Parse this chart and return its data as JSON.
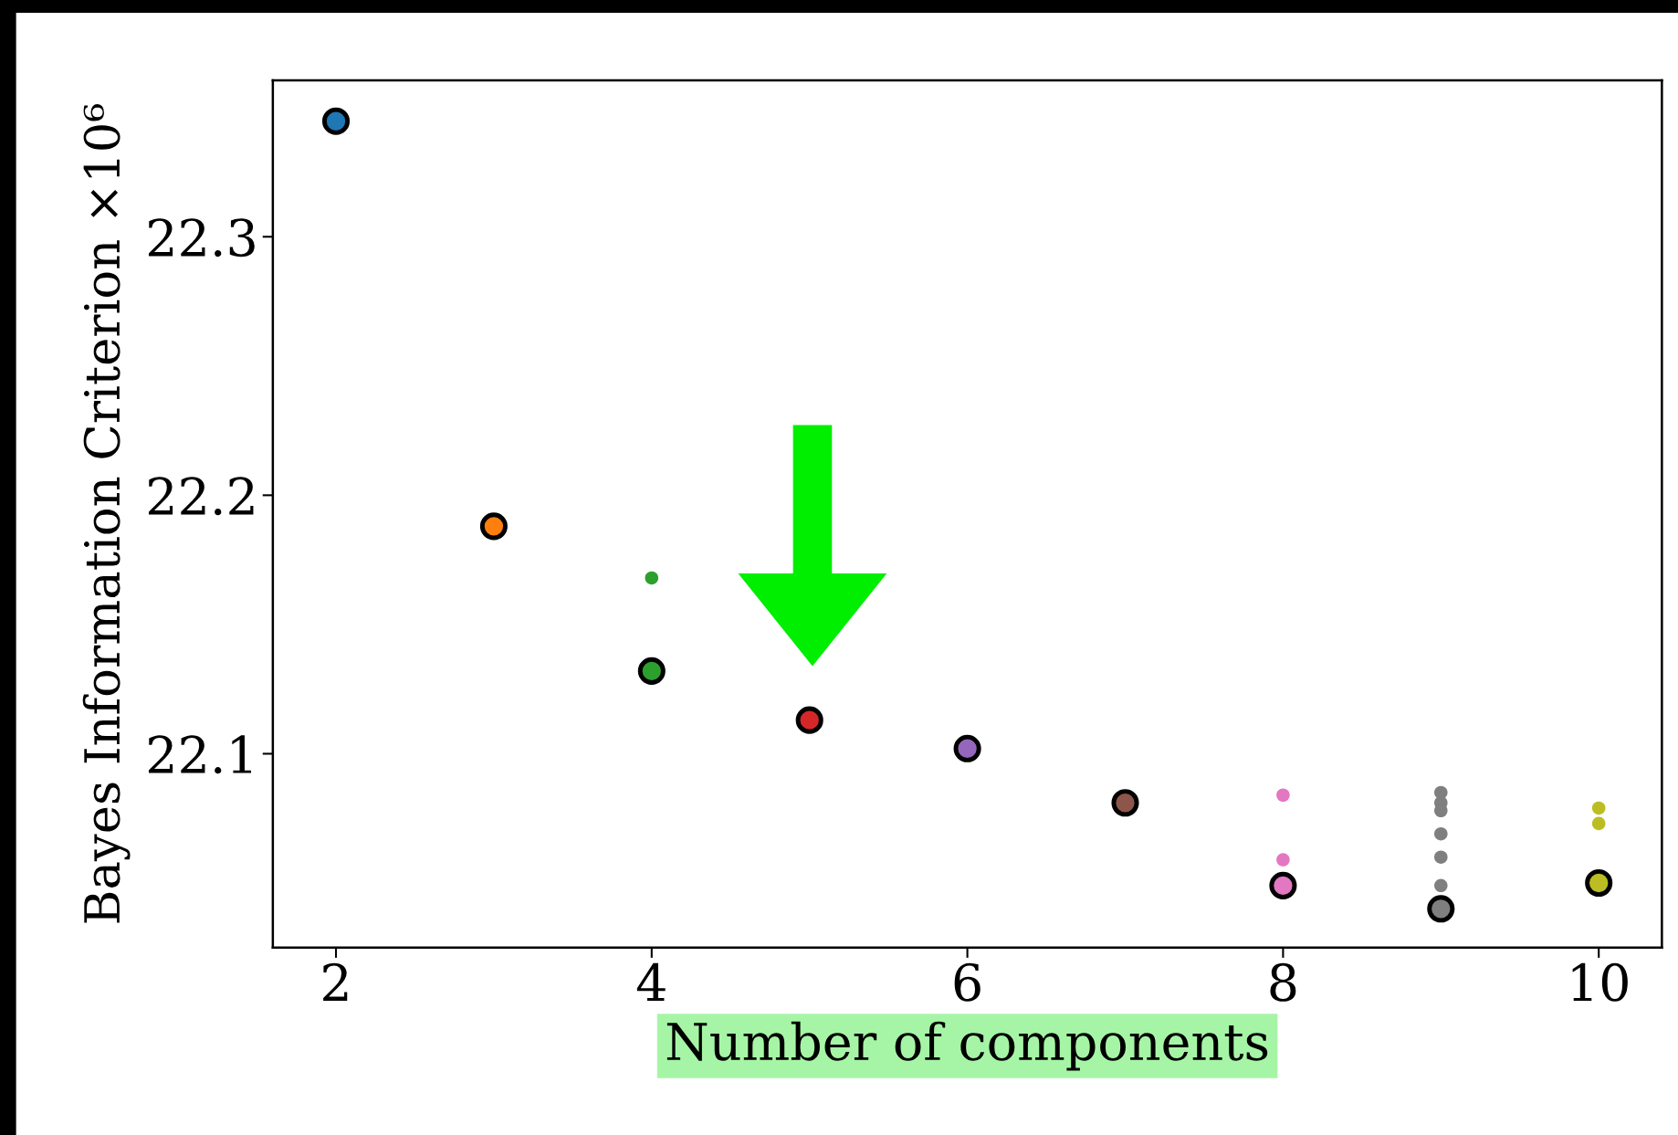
{
  "chart_data": {
    "type": "scatter",
    "xlabel": "Number of components",
    "ylabel": "Bayes Information Criterion ×10⁶",
    "xlim": [
      1.6,
      10.4
    ],
    "xticks": [
      2,
      4,
      6,
      8,
      10
    ],
    "ylim": [
      22.025,
      22.3605
    ],
    "yticks": [
      22.1,
      22.2,
      22.3
    ],
    "grid": false,
    "legend": false,
    "marker": "circle",
    "series": [
      {
        "x": [
          2,
          3,
          4,
          5,
          6,
          7,
          8,
          9,
          10
        ],
        "values": [
          22.3447,
          22.188,
          22.132,
          22.113,
          22.102,
          22.081,
          22.049,
          22.04,
          22.05
        ],
        "colors": [
          "#1f77b4",
          "#ff7f0e",
          "#2ca02c",
          "#d62728",
          "#9467bd",
          "#8c564b",
          "#e377c2",
          "#7f7f7f",
          "#bcbd22"
        ]
      },
      {
        "x": [
          4
        ],
        "values": [
          22.168
        ],
        "color": "#2ca02c"
      },
      {
        "x": [
          8,
          8
        ],
        "values": [
          22.084,
          22.059
        ],
        "color": "#e377c2"
      },
      {
        "x": [
          9,
          9,
          9,
          9,
          9,
          9
        ],
        "values": [
          22.085,
          22.081,
          22.078,
          22.069,
          22.06,
          22.049
        ],
        "color": "#7f7f7f"
      },
      {
        "x": [
          10,
          10
        ],
        "values": [
          22.079,
          22.073
        ],
        "color": "#bcbd22"
      }
    ]
  }
}
